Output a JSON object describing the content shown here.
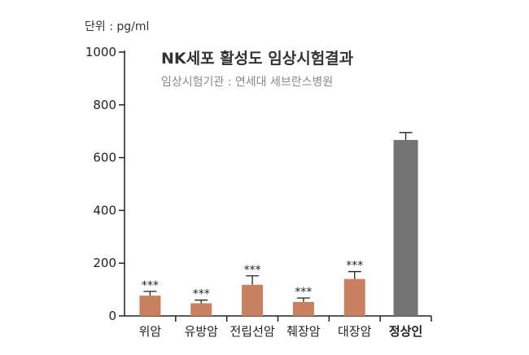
{
  "unit_label": "단위 : pg/ml",
  "colors": {
    "bar": "#c9805f",
    "highlight_bar": "#737373",
    "axis": "#222222",
    "title": "#333333",
    "subtitle": "#888888"
  },
  "chart_data": {
    "type": "bar",
    "title": "NK세포 활성도 임상시험결과",
    "subtitle": "임상시험기관 : 연세대 세브란스병원",
    "xlabel": "",
    "ylabel": "",
    "ylim": [
      0,
      1000
    ],
    "yticks": [
      "0",
      "200",
      "400",
      "600",
      "800",
      "1000"
    ],
    "categories": [
      "위암",
      "유방암",
      "전립선암",
      "췌장암",
      "대장암",
      "정상인"
    ],
    "values": [
      77,
      48,
      118,
      53,
      140,
      667
    ],
    "error_upper": [
      93,
      60,
      152,
      68,
      168,
      695
    ],
    "significance": [
      "***",
      "***",
      "***",
      "***",
      "***",
      ""
    ],
    "highlight_category": "정상인",
    "grid": false,
    "legend": "none"
  }
}
